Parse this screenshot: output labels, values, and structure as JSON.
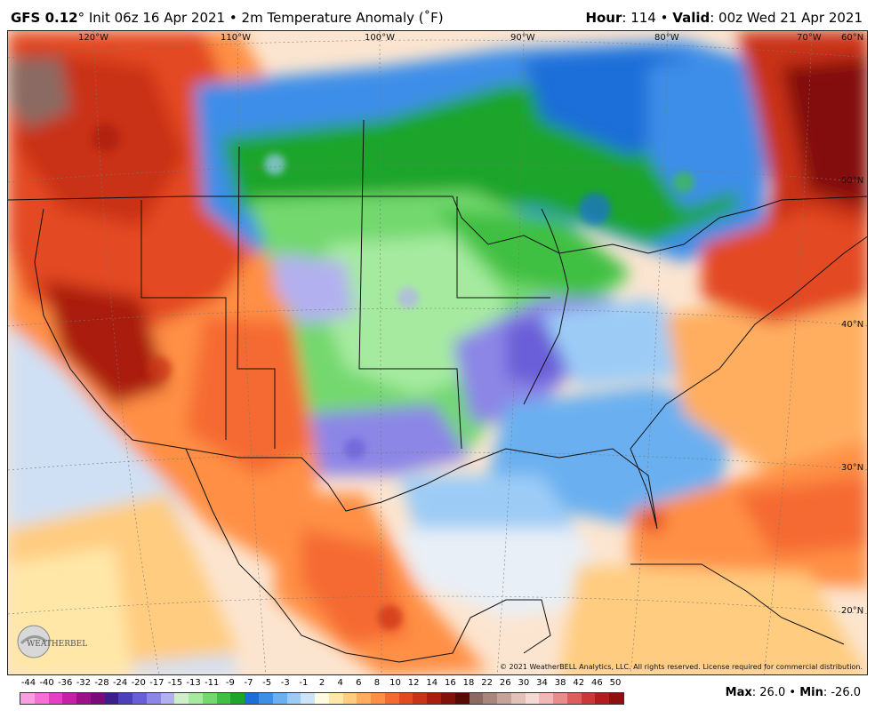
{
  "header": {
    "model": "GFS 0.12",
    "deg": "°",
    "init": "Init 06z 16 Apr 2021",
    "field": "2m Temperature Anomaly (˚F)",
    "hour_label": "Hour",
    "hour_value": "114",
    "valid_label": "Valid",
    "valid_value": "00z Wed 21 Apr 2021"
  },
  "map": {
    "lon_labels": [
      "120°W",
      "110°W",
      "100°W",
      "90°W",
      "80°W",
      "70°W"
    ],
    "lat_labels": [
      "60°N",
      "50°N",
      "40°N",
      "30°N",
      "20°N"
    ]
  },
  "branding": {
    "logo_text": "WEATHERBELL",
    "copyright": "© 2021 WeatherBELL Analytics, LLC. All rights reserved. License required for commercial distribution."
  },
  "legend": {
    "ticks": [
      "-44",
      "-40",
      "-36",
      "-32",
      "-28",
      "-24",
      "-20",
      "-17",
      "-15",
      "-13",
      "-11",
      "-9",
      "-7",
      "-5",
      "-3",
      "-1",
      "2",
      "4",
      "6",
      "8",
      "10",
      "12",
      "14",
      "16",
      "18",
      "22",
      "26",
      "30",
      "34",
      "38",
      "42",
      "46",
      "50"
    ],
    "colors": [
      "#f99fe0",
      "#f56fd6",
      "#e63fc4",
      "#c81fa8",
      "#9d1188",
      "#7a0c7a",
      "#3d1e8f",
      "#4b3fbb",
      "#6a5ed8",
      "#8c86e6",
      "#b3b0ef",
      "#cfeec9",
      "#a6eaa0",
      "#73d86e",
      "#40c043",
      "#1ea52b",
      "#1e6ed8",
      "#3c8ee8",
      "#6bb0f0",
      "#9cccf6",
      "#cde3f8",
      "#fffbe0",
      "#ffe7a8",
      "#ffcc80",
      "#ffae60",
      "#ff8f45",
      "#f56a32",
      "#e34a22",
      "#c93318",
      "#aa1e10",
      "#83110a",
      "#5a0a06",
      "#8a6a62",
      "#a9867c",
      "#c5a39a",
      "#e2c1b8",
      "#f5d9d3",
      "#f2b8b8",
      "#e88c8c",
      "#dc5e5e",
      "#cc3838",
      "#b31c1c",
      "#8f0f0f"
    ]
  },
  "stats": {
    "max_label": "Max",
    "max_value": "26.0",
    "min_label": "Min",
    "min_value": "-26.0"
  }
}
